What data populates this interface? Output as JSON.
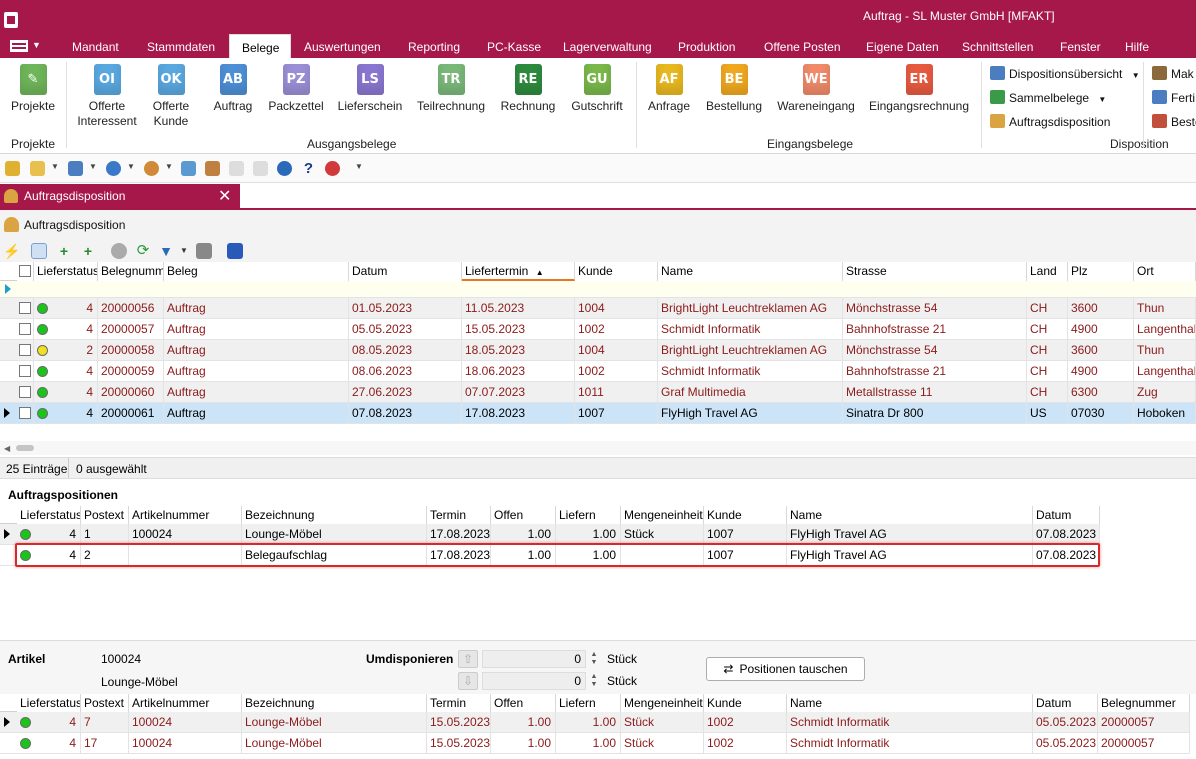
{
  "window": {
    "title": "Auftrag - SL Muster GmbH [MFAKT]"
  },
  "menu": {
    "tabs": [
      "Mandant",
      "Stammdaten",
      "Belege",
      "Auswertungen",
      "Reporting",
      "PC-Kasse",
      "Lagerverwaltung",
      "Produktion",
      "Offene Posten",
      "Eigene Daten",
      "Schnittstellen",
      "Fenster",
      "Hilfe"
    ],
    "active": "Belege"
  },
  "ribbon": {
    "projekte": {
      "button": "Projekte",
      "group": "Projekte"
    },
    "ausgang": {
      "group": "Ausgangsbelege",
      "buttons": [
        {
          "label1": "Offerte",
          "label2": "Interessent",
          "abbr": "OI",
          "color": "#5aa8e0"
        },
        {
          "label1": "Offerte",
          "label2": "Kunde",
          "abbr": "OK",
          "color": "#5aa8e0"
        },
        {
          "label1": "Auftrag",
          "label2": "",
          "abbr": "AB",
          "color": "#4d8fd6"
        },
        {
          "label1": "Packzettel",
          "label2": "",
          "abbr": "PZ",
          "color": "#9a8fd6"
        },
        {
          "label1": "Lieferschein",
          "label2": "",
          "abbr": "LS",
          "color": "#8a76d0"
        },
        {
          "label1": "Teilrechnung",
          "label2": "",
          "abbr": "TR",
          "color": "#7ab87a"
        },
        {
          "label1": "Rechnung",
          "label2": "",
          "abbr": "RE",
          "color": "#2e8b3e"
        },
        {
          "label1": "Gutschrift",
          "label2": "",
          "abbr": "GU",
          "color": "#7ab84a"
        }
      ]
    },
    "eingang": {
      "group": "Eingangsbelege",
      "buttons": [
        {
          "label1": "Anfrage",
          "abbr": "AF",
          "color": "#e8b820"
        },
        {
          "label1": "Bestellung",
          "abbr": "BE",
          "color": "#f0a820"
        },
        {
          "label1": "Wareneingang",
          "abbr": "WE",
          "color": "#f08a6a"
        },
        {
          "label1": "Eingangsrechnung",
          "abbr": "ER",
          "color": "#e85a40"
        }
      ]
    },
    "dispo": {
      "group": "Disposition",
      "items": [
        "Dispositionsübersicht",
        "Sammelbelege",
        "Auftragsdisposition"
      ],
      "more": [
        "Mak",
        "Ferti",
        "Beste"
      ]
    }
  },
  "doc_tab": {
    "label": "Auftragsdisposition",
    "close": "✕"
  },
  "panel": {
    "title": "Auftragsdisposition"
  },
  "orders": {
    "columns": [
      "Lieferstatus",
      "Belegnummer",
      "Beleg",
      "Datum",
      "Liefertermin",
      "Kunde",
      "Name",
      "Strasse",
      "Land",
      "Plz",
      "Ort"
    ],
    "rows": [
      {
        "status": "green",
        "ls": "4",
        "nr": "20000056",
        "beleg": "Auftrag",
        "datum": "01.05.2023",
        "termin": "11.05.2023",
        "kunde": "1004",
        "name": "BrightLight Leuchtreklamen AG",
        "strasse": "Mönchstrasse 54",
        "land": "CH",
        "plz": "3600",
        "ort": "Thun"
      },
      {
        "status": "green",
        "ls": "4",
        "nr": "20000057",
        "beleg": "Auftrag",
        "datum": "05.05.2023",
        "termin": "15.05.2023",
        "kunde": "1002",
        "name": "Schmidt Informatik",
        "strasse": "Bahnhofstrasse 21",
        "land": "CH",
        "plz": "4900",
        "ort": "Langenthal"
      },
      {
        "status": "yellow",
        "ls": "2",
        "nr": "20000058",
        "beleg": "Auftrag",
        "datum": "08.05.2023",
        "termin": "18.05.2023",
        "kunde": "1004",
        "name": "BrightLight Leuchtreklamen AG",
        "strasse": "Mönchstrasse 54",
        "land": "CH",
        "plz": "3600",
        "ort": "Thun"
      },
      {
        "status": "green",
        "ls": "4",
        "nr": "20000059",
        "beleg": "Auftrag",
        "datum": "08.06.2023",
        "termin": "18.06.2023",
        "kunde": "1002",
        "name": "Schmidt Informatik",
        "strasse": "Bahnhofstrasse 21",
        "land": "CH",
        "plz": "4900",
        "ort": "Langenthal"
      },
      {
        "status": "green",
        "ls": "4",
        "nr": "20000060",
        "beleg": "Auftrag",
        "datum": "27.06.2023",
        "termin": "07.07.2023",
        "kunde": "1011",
        "name": "Graf Multimedia",
        "strasse": "Metallstrasse 11",
        "land": "CH",
        "plz": "6300",
        "ort": "Zug"
      },
      {
        "status": "green",
        "ls": "4",
        "nr": "20000061",
        "beleg": "Auftrag",
        "datum": "07.08.2023",
        "termin": "17.08.2023",
        "kunde": "1007",
        "name": "FlyHigh Travel AG",
        "strasse": "Sinatra Dr 800",
        "land": "US",
        "plz": "07030",
        "ort": "Hoboken"
      }
    ]
  },
  "status_bar": {
    "entries": "25 Einträge",
    "selected": "0 ausgewählt"
  },
  "positions": {
    "title": "Auftragspositionen",
    "columns": [
      "Lieferstatus",
      "Postext",
      "Artikelnummer",
      "Bezeichnung",
      "Termin",
      "Offen",
      "Liefern",
      "Mengeneinheit",
      "Kunde",
      "Name",
      "Datum"
    ],
    "rows": [
      {
        "ls": "4",
        "postext": "1",
        "artnr": "100024",
        "bez": "Lounge-Möbel",
        "termin": "17.08.2023",
        "offen": "1.00",
        "liefern": "1.00",
        "me": "Stück",
        "kunde": "1007",
        "name": "FlyHigh Travel AG",
        "datum": "07.08.2023"
      },
      {
        "ls": "4",
        "postext": "2",
        "artnr": "",
        "bez": "Belegaufschlag",
        "termin": "17.08.2023",
        "offen": "1.00",
        "liefern": "1.00",
        "me": "",
        "kunde": "1007",
        "name": "FlyHigh Travel AG",
        "datum": "07.08.2023"
      }
    ]
  },
  "artikel": {
    "label": "Artikel",
    "nummer": "100024",
    "name": "Lounge-Möbel",
    "umdispo_label": "Umdisponieren",
    "val1": "0",
    "val2": "0",
    "unit": "Stück",
    "swap_button": "Positionen tauschen"
  },
  "dispo_list": {
    "columns": [
      "Lieferstatus",
      "Postext",
      "Artikelnummer",
      "Bezeichnung",
      "Termin",
      "Offen",
      "Liefern",
      "Mengeneinheit",
      "Kunde",
      "Name",
      "Datum",
      "Belegnummer"
    ],
    "rows": [
      {
        "ls": "4",
        "postext": "7",
        "artnr": "100024",
        "bez": "Lounge-Möbel",
        "termin": "15.05.2023",
        "offen": "1.00",
        "liefern": "1.00",
        "me": "Stück",
        "kunde": "1002",
        "name": "Schmidt Informatik",
        "datum": "05.05.2023",
        "beleg": "20000057"
      },
      {
        "ls": "4",
        "postext": "17",
        "artnr": "100024",
        "bez": "Lounge-Möbel",
        "termin": "15.05.2023",
        "offen": "1.00",
        "liefern": "1.00",
        "me": "Stück",
        "kunde": "1002",
        "name": "Schmidt Informatik",
        "datum": "05.05.2023",
        "beleg": "20000057"
      }
    ]
  }
}
